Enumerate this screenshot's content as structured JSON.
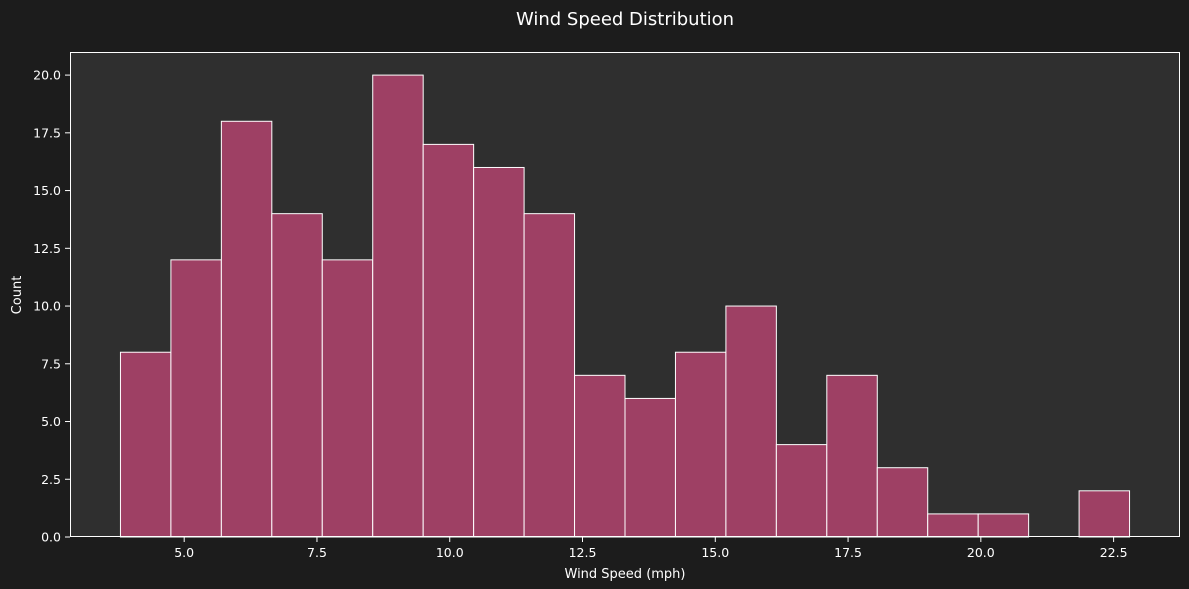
{
  "chart_data": {
    "type": "bar",
    "title": "Wind Speed Distribution",
    "xlabel": "Wind Speed (mph)",
    "ylabel": "Count",
    "bin_edges": [
      3.8,
      4.75,
      5.7,
      6.65,
      7.6,
      8.55,
      9.5,
      10.45,
      11.4,
      12.35,
      13.3,
      14.25,
      15.2,
      16.15,
      17.1,
      18.05,
      19.0,
      19.95,
      20.9,
      21.85,
      22.8
    ],
    "values": [
      8,
      12,
      18,
      14,
      12,
      20,
      17,
      16,
      14,
      7,
      6,
      8,
      10,
      4,
      7,
      3,
      1,
      1,
      0,
      2
    ],
    "xlim": [
      2.85,
      23.75
    ],
    "ylim": [
      0,
      21
    ],
    "x_ticks": [
      5.0,
      7.5,
      10.0,
      12.5,
      15.0,
      17.5,
      20.0,
      22.5
    ],
    "x_tick_labels": [
      "5.0",
      "7.5",
      "10.0",
      "12.5",
      "15.0",
      "17.5",
      "20.0",
      "22.5"
    ],
    "y_ticks": [
      0,
      2.5,
      5,
      7.5,
      10,
      12.5,
      15,
      17.5,
      20
    ],
    "y_tick_labels": [
      "0.0",
      "2.5",
      "5.0",
      "7.5",
      "10.0",
      "12.5",
      "15.0",
      "17.5",
      "20.0"
    ],
    "grid": false,
    "colors": {
      "figure_bg": "#1c1c1c",
      "plot_bg": "#2f2f2f",
      "bar_fill": "#9e4064",
      "bar_edge": "#ffffff",
      "axis": "#ffffff"
    }
  }
}
